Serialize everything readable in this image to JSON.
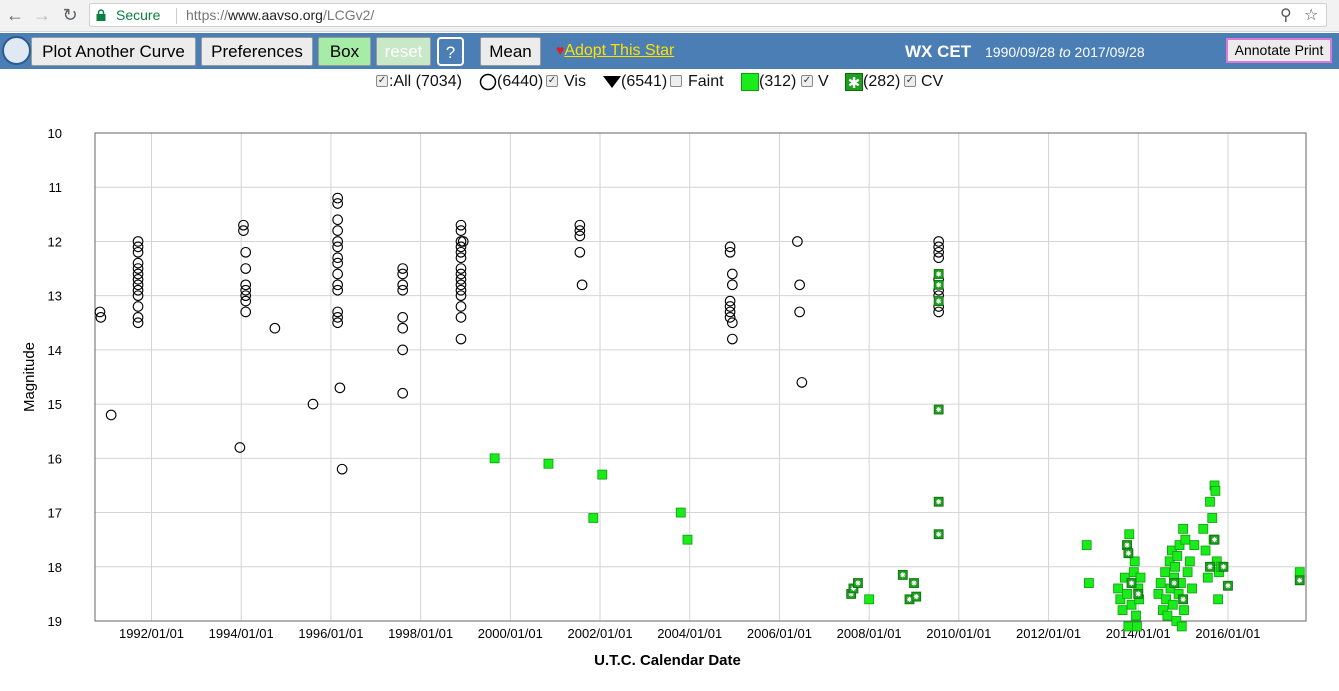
{
  "browser": {
    "secure_label": "Secure",
    "url_scheme": "https://",
    "url_host": "www.aavso.org",
    "url_path": "/LCGv2/"
  },
  "toolbar": {
    "plot_another": "Plot Another Curve",
    "preferences": "Preferences",
    "box": "Box",
    "reset": "reset",
    "help": "?",
    "mean": "Mean",
    "adopt": "Adopt This Star",
    "star_name": "WX CET",
    "date_from": "1990/09/28",
    "date_to_word": "to",
    "date_to": "2017/09/28",
    "annotate": "Annotate Print"
  },
  "legend": {
    "all_label": ":All (7034)",
    "vis_count": "(6440)",
    "vis_label": "Vis",
    "faint_count": "(6541)",
    "faint_label": "Faint",
    "v_count": "(312)",
    "v_label": "V",
    "cv_count": "(282)",
    "cv_label": "CV"
  },
  "colors": {
    "toolbar": "#4a7eb5",
    "green": "#1aeb1a",
    "cv_green": "#1d9e1d"
  },
  "chart_data": {
    "type": "scatter",
    "title": "",
    "xlabel": "U.T.C. Calendar Date",
    "ylabel": "Magnitude",
    "x_unit": "decimal year",
    "xlim": [
      1990.74,
      2017.74
    ],
    "ylim": [
      19,
      10
    ],
    "y_inverted": true,
    "grid": true,
    "x_tick_labels": [
      "1992/01/01",
      "1994/01/01",
      "1996/01/01",
      "1998/01/01",
      "2000/01/01",
      "2002/01/01",
      "2004/01/01",
      "2006/01/01",
      "2008/01/01",
      "2010/01/01",
      "2012/01/01",
      "2014/01/01",
      "2016/01/01"
    ],
    "y_ticks": [
      10,
      11,
      12,
      13,
      14,
      15,
      16,
      17,
      18,
      19
    ],
    "series": [
      {
        "name": "Vis",
        "marker": "open-circle",
        "points": [
          [
            1990.85,
            13.3
          ],
          [
            1990.87,
            13.4
          ],
          [
            1991.1,
            15.2
          ],
          [
            1991.7,
            12.0
          ],
          [
            1991.7,
            12.1
          ],
          [
            1991.7,
            12.2
          ],
          [
            1991.7,
            12.4
          ],
          [
            1991.7,
            12.5
          ],
          [
            1991.7,
            12.6
          ],
          [
            1991.7,
            12.7
          ],
          [
            1991.7,
            12.8
          ],
          [
            1991.7,
            12.9
          ],
          [
            1991.7,
            13.0
          ],
          [
            1991.7,
            13.2
          ],
          [
            1991.7,
            13.4
          ],
          [
            1991.7,
            13.5
          ],
          [
            1993.97,
            15.8
          ],
          [
            1994.05,
            11.7
          ],
          [
            1994.05,
            11.8
          ],
          [
            1994.1,
            12.2
          ],
          [
            1994.1,
            12.5
          ],
          [
            1994.1,
            12.8
          ],
          [
            1994.1,
            12.9
          ],
          [
            1994.1,
            13.0
          ],
          [
            1994.1,
            13.1
          ],
          [
            1994.1,
            13.3
          ],
          [
            1994.75,
            13.6
          ],
          [
            1995.6,
            15.0
          ],
          [
            1996.15,
            11.2
          ],
          [
            1996.15,
            11.3
          ],
          [
            1996.15,
            11.6
          ],
          [
            1996.15,
            11.8
          ],
          [
            1996.15,
            12.0
          ],
          [
            1996.15,
            12.1
          ],
          [
            1996.15,
            12.3
          ],
          [
            1996.15,
            12.4
          ],
          [
            1996.15,
            12.6
          ],
          [
            1996.15,
            12.8
          ],
          [
            1996.15,
            12.9
          ],
          [
            1996.15,
            13.3
          ],
          [
            1996.15,
            13.4
          ],
          [
            1996.15,
            13.5
          ],
          [
            1996.2,
            14.7
          ],
          [
            1996.25,
            16.2
          ],
          [
            1997.6,
            12.5
          ],
          [
            1997.6,
            12.6
          ],
          [
            1997.6,
            12.8
          ],
          [
            1997.6,
            12.9
          ],
          [
            1997.6,
            13.4
          ],
          [
            1997.6,
            13.6
          ],
          [
            1997.6,
            14.0
          ],
          [
            1997.6,
            14.8
          ],
          [
            1998.9,
            11.7
          ],
          [
            1998.9,
            11.8
          ],
          [
            1998.9,
            12.0
          ],
          [
            1998.9,
            12.1
          ],
          [
            1998.9,
            12.2
          ],
          [
            1998.9,
            12.3
          ],
          [
            1998.9,
            12.5
          ],
          [
            1998.9,
            12.6
          ],
          [
            1998.9,
            12.7
          ],
          [
            1998.9,
            12.8
          ],
          [
            1998.9,
            12.9
          ],
          [
            1998.9,
            13.0
          ],
          [
            1998.9,
            13.2
          ],
          [
            1998.9,
            13.4
          ],
          [
            1998.9,
            13.8
          ],
          [
            1998.95,
            12.0
          ],
          [
            2001.55,
            11.7
          ],
          [
            2001.55,
            11.8
          ],
          [
            2001.55,
            11.9
          ],
          [
            2001.55,
            12.2
          ],
          [
            2001.6,
            12.8
          ],
          [
            2004.9,
            12.1
          ],
          [
            2004.9,
            12.2
          ],
          [
            2004.95,
            12.6
          ],
          [
            2004.95,
            12.8
          ],
          [
            2004.9,
            13.1
          ],
          [
            2004.9,
            13.2
          ],
          [
            2004.9,
            13.3
          ],
          [
            2004.9,
            13.4
          ],
          [
            2004.95,
            13.5
          ],
          [
            2004.95,
            13.8
          ],
          [
            2006.4,
            12.0
          ],
          [
            2006.45,
            12.8
          ],
          [
            2006.45,
            13.3
          ],
          [
            2006.5,
            14.6
          ],
          [
            2009.55,
            12.0
          ],
          [
            2009.55,
            12.1
          ],
          [
            2009.55,
            12.2
          ],
          [
            2009.55,
            12.3
          ],
          [
            2009.55,
            12.7
          ],
          [
            2009.55,
            12.9
          ],
          [
            2009.55,
            13.0
          ],
          [
            2009.55,
            13.2
          ],
          [
            2009.55,
            13.3
          ]
        ]
      },
      {
        "name": "V",
        "marker": "filled-square",
        "points": [
          [
            1999.65,
            16.0
          ],
          [
            2000.85,
            16.1
          ],
          [
            2001.85,
            17.1
          ],
          [
            2002.05,
            16.3
          ],
          [
            2003.8,
            17.0
          ],
          [
            2003.95,
            17.5
          ],
          [
            2008.0,
            18.6
          ],
          [
            2012.85,
            17.6
          ],
          [
            2012.9,
            18.3
          ],
          [
            2013.55,
            18.4
          ],
          [
            2013.6,
            18.6
          ],
          [
            2013.65,
            18.8
          ],
          [
            2013.7,
            18.2
          ],
          [
            2013.75,
            18.5
          ],
          [
            2013.78,
            19.1
          ],
          [
            2013.8,
            17.4
          ],
          [
            2013.85,
            18.7
          ],
          [
            2013.9,
            18.1
          ],
          [
            2013.92,
            17.9
          ],
          [
            2013.95,
            18.9
          ],
          [
            2013.97,
            19.1
          ],
          [
            2014.0,
            18.4
          ],
          [
            2014.02,
            18.6
          ],
          [
            2014.05,
            18.2
          ],
          [
            2014.45,
            18.5
          ],
          [
            2014.5,
            18.3
          ],
          [
            2014.55,
            18.8
          ],
          [
            2014.6,
            18.1
          ],
          [
            2014.62,
            18.6
          ],
          [
            2014.65,
            18.9
          ],
          [
            2014.7,
            17.9
          ],
          [
            2014.72,
            18.4
          ],
          [
            2014.75,
            17.7
          ],
          [
            2014.77,
            18.7
          ],
          [
            2014.8,
            18.2
          ],
          [
            2014.82,
            18.0
          ],
          [
            2014.85,
            19.0
          ],
          [
            2014.87,
            17.8
          ],
          [
            2014.9,
            18.5
          ],
          [
            2014.92,
            17.6
          ],
          [
            2014.95,
            18.3
          ],
          [
            2014.97,
            19.1
          ],
          [
            2015.0,
            17.3
          ],
          [
            2015.02,
            18.8
          ],
          [
            2015.05,
            17.5
          ],
          [
            2015.1,
            18.1
          ],
          [
            2015.15,
            17.9
          ],
          [
            2015.2,
            18.4
          ],
          [
            2015.25,
            17.6
          ],
          [
            2015.45,
            17.3
          ],
          [
            2015.5,
            17.7
          ],
          [
            2015.55,
            18.2
          ],
          [
            2015.6,
            16.8
          ],
          [
            2015.65,
            17.1
          ],
          [
            2015.68,
            17.5
          ],
          [
            2015.7,
            16.5
          ],
          [
            2015.72,
            16.6
          ],
          [
            2015.75,
            17.9
          ],
          [
            2015.78,
            18.6
          ],
          [
            2015.8,
            18.1
          ],
          [
            2015.85,
            18.0
          ],
          [
            2017.6,
            18.1
          ]
        ]
      },
      {
        "name": "CV",
        "marker": "starred-square",
        "points": [
          [
            2007.6,
            18.5
          ],
          [
            2007.65,
            18.4
          ],
          [
            2007.75,
            18.3
          ],
          [
            2008.75,
            18.15
          ],
          [
            2008.9,
            18.6
          ],
          [
            2009.0,
            18.3
          ],
          [
            2009.05,
            18.55
          ],
          [
            2009.55,
            12.6
          ],
          [
            2009.55,
            12.8
          ],
          [
            2009.55,
            13.1
          ],
          [
            2009.55,
            15.1
          ],
          [
            2009.55,
            16.8
          ],
          [
            2009.55,
            17.4
          ],
          [
            2013.75,
            17.6
          ],
          [
            2013.78,
            17.75
          ],
          [
            2013.85,
            18.3
          ],
          [
            2014.0,
            18.5
          ],
          [
            2014.8,
            18.3
          ],
          [
            2015.0,
            18.6
          ],
          [
            2015.6,
            18.0
          ],
          [
            2015.7,
            17.5
          ],
          [
            2015.9,
            18.0
          ],
          [
            2016.0,
            18.35
          ],
          [
            2017.6,
            18.25
          ]
        ]
      }
    ]
  }
}
